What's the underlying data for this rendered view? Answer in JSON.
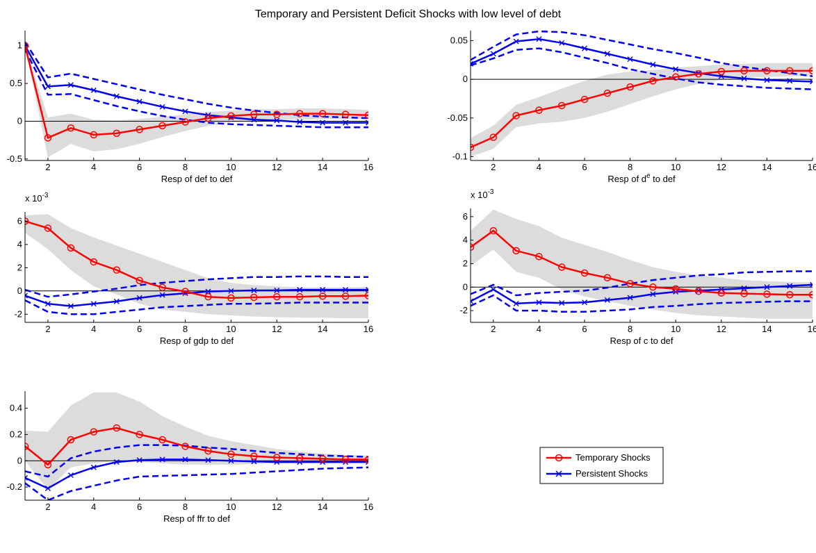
{
  "figure_title": "Temporary and Persistent Deficit Shocks with low level of debt",
  "colors": {
    "temporary": "#ff0000",
    "persistent": "#0000ee",
    "band": "#dcdcdc",
    "zero_line": "#000000"
  },
  "legend": {
    "items": [
      "Temporary Shocks",
      "Persistent Shocks"
    ]
  },
  "chart_data": [
    {
      "type": "line",
      "xlabel": "Resp of def to def",
      "xlabel_sup": "",
      "xlabel_after": "",
      "exponent_label": "",
      "x": [
        1,
        2,
        3,
        4,
        5,
        6,
        7,
        8,
        9,
        10,
        11,
        12,
        13,
        14,
        15,
        16
      ],
      "xlim": [
        1,
        16
      ],
      "ylim": [
        -0.52,
        1.2
      ],
      "xticks": [
        "2",
        "4",
        "6",
        "8",
        "10",
        "12",
        "14",
        "16"
      ],
      "yticks": [
        {
          "value": -0.5,
          "label": "-0.5"
        },
        {
          "value": 0,
          "label": "0"
        },
        {
          "value": 0.5,
          "label": "0.5"
        },
        {
          "value": 1,
          "label": "1"
        }
      ],
      "series": [
        {
          "name": "Temporary Shocks",
          "values": [
            1.0,
            -0.22,
            -0.09,
            -0.18,
            -0.16,
            -0.11,
            -0.06,
            -0.01,
            0.04,
            0.07,
            0.09,
            0.09,
            0.1,
            0.1,
            0.09,
            0.08
          ]
        },
        {
          "name": "Persistent Shocks",
          "values": [
            1.0,
            0.46,
            0.48,
            0.41,
            0.33,
            0.26,
            0.19,
            0.13,
            0.08,
            0.05,
            0.02,
            0.01,
            -0.01,
            -0.02,
            -0.02,
            -0.02
          ]
        }
      ],
      "persistent_band": {
        "upper": [
          1.05,
          0.58,
          0.63,
          0.56,
          0.49,
          0.42,
          0.35,
          0.29,
          0.23,
          0.18,
          0.14,
          0.11,
          0.08,
          0.06,
          0.05,
          0.04
        ],
        "lower": [
          0.95,
          0.35,
          0.36,
          0.28,
          0.2,
          0.13,
          0.07,
          0.02,
          -0.02,
          -0.04,
          -0.05,
          -0.06,
          -0.07,
          -0.08,
          -0.08,
          -0.08
        ]
      },
      "temporary_band": {
        "upper": [
          1.0,
          0.05,
          0.1,
          0.02,
          0.01,
          0.03,
          0.06,
          0.09,
          0.12,
          0.14,
          0.16,
          0.16,
          0.17,
          0.17,
          0.16,
          0.15
        ],
        "lower": [
          1.0,
          -0.48,
          -0.3,
          -0.4,
          -0.37,
          -0.3,
          -0.21,
          -0.13,
          -0.06,
          -0.02,
          0.01,
          0.02,
          0.02,
          0.03,
          0.03,
          0.03
        ]
      }
    },
    {
      "type": "line",
      "xlabel": "Resp of d",
      "xlabel_sup": "e",
      "xlabel_after": " to def",
      "exponent_label": "",
      "x": [
        1,
        2,
        3,
        4,
        5,
        6,
        7,
        8,
        9,
        10,
        11,
        12,
        13,
        14,
        15,
        16
      ],
      "xlim": [
        1,
        16
      ],
      "ylim": [
        -0.105,
        0.063
      ],
      "xticks": [
        "2",
        "4",
        "6",
        "8",
        "10",
        "12",
        "14",
        "16"
      ],
      "yticks": [
        {
          "value": -0.1,
          "label": "-0.1"
        },
        {
          "value": -0.05,
          "label": "-0.05"
        },
        {
          "value": 0,
          "label": "0"
        },
        {
          "value": 0.05,
          "label": "0.05"
        }
      ],
      "series": [
        {
          "name": "Temporary Shocks",
          "values": [
            -0.088,
            -0.075,
            -0.047,
            -0.04,
            -0.034,
            -0.026,
            -0.018,
            -0.01,
            -0.002,
            0.003,
            0.007,
            0.01,
            0.011,
            0.011,
            0.011,
            0.011
          ]
        },
        {
          "name": "Persistent Shocks",
          "values": [
            0.02,
            0.033,
            0.049,
            0.052,
            0.047,
            0.04,
            0.033,
            0.026,
            0.019,
            0.013,
            0.008,
            0.004,
            0.001,
            -0.001,
            -0.002,
            -0.003
          ]
        }
      ],
      "persistent_band": {
        "upper": [
          0.025,
          0.042,
          0.058,
          0.062,
          0.061,
          0.057,
          0.051,
          0.045,
          0.039,
          0.034,
          0.028,
          0.021,
          0.016,
          0.012,
          0.008,
          0.004
        ],
        "lower": [
          0.018,
          0.027,
          0.038,
          0.04,
          0.035,
          0.028,
          0.021,
          0.013,
          0.007,
          0.001,
          -0.004,
          -0.007,
          -0.009,
          -0.011,
          -0.012,
          -0.013
        ]
      },
      "temporary_band": {
        "upper": [
          -0.076,
          -0.06,
          -0.033,
          -0.023,
          -0.012,
          -0.002,
          0.006,
          0.01,
          0.012,
          0.015,
          0.017,
          0.019,
          0.02,
          0.021,
          0.021,
          0.021
        ],
        "lower": [
          -0.1,
          -0.09,
          -0.062,
          -0.057,
          -0.055,
          -0.05,
          -0.042,
          -0.032,
          -0.022,
          -0.013,
          -0.006,
          -0.001,
          0.002,
          0.003,
          0.004,
          0.004
        ]
      }
    },
    {
      "type": "line",
      "xlabel": "Resp of gdp to def",
      "xlabel_sup": "",
      "xlabel_after": "",
      "exponent_label": "x 10",
      "exponent_power": "-3",
      "x": [
        1,
        2,
        3,
        4,
        5,
        6,
        7,
        8,
        9,
        10,
        11,
        12,
        13,
        14,
        15,
        16
      ],
      "xlim": [
        1,
        16
      ],
      "ylim": [
        -2.7,
        6.8
      ],
      "xticks": [
        "2",
        "4",
        "6",
        "8",
        "10",
        "12",
        "14",
        "16"
      ],
      "yticks": [
        {
          "value": -2,
          "label": "-2"
        },
        {
          "value": 0,
          "label": "0"
        },
        {
          "value": 2,
          "label": "2"
        },
        {
          "value": 4,
          "label": "4"
        },
        {
          "value": 6,
          "label": "6"
        }
      ],
      "series": [
        {
          "name": "Temporary Shocks",
          "values": [
            6.0,
            5.4,
            3.7,
            2.5,
            1.8,
            0.9,
            0.3,
            -0.05,
            -0.5,
            -0.6,
            -0.55,
            -0.5,
            -0.5,
            -0.45,
            -0.45,
            -0.4
          ]
        },
        {
          "name": "Persistent Shocks",
          "values": [
            -0.4,
            -1.1,
            -1.3,
            -1.1,
            -0.9,
            -0.6,
            -0.35,
            -0.2,
            -0.05,
            0.0,
            0.05,
            0.05,
            0.1,
            0.1,
            0.1,
            0.1
          ]
        }
      ],
      "persistent_band": {
        "upper": [
          0.1,
          -0.5,
          -0.3,
          -0.05,
          0.2,
          0.5,
          0.7,
          0.85,
          1.0,
          1.1,
          1.2,
          1.2,
          1.25,
          1.25,
          1.2,
          1.2
        ],
        "lower": [
          -0.8,
          -1.8,
          -2.0,
          -2.0,
          -1.8,
          -1.6,
          -1.4,
          -1.3,
          -1.2,
          -1.1,
          -1.1,
          -1.05,
          -1.0,
          -1.0,
          -1.0,
          -1.0
        ]
      },
      "temporary_band": {
        "upper": [
          6.5,
          6.6,
          5.4,
          4.6,
          3.9,
          3.2,
          2.5,
          1.8,
          1.1,
          0.7,
          0.5,
          0.4,
          0.3,
          0.3,
          0.3,
          0.35
        ],
        "lower": [
          5.0,
          3.6,
          1.8,
          0.4,
          -0.3,
          -1.1,
          -1.6,
          -1.8,
          -2.0,
          -2.1,
          -2.2,
          -2.25,
          -2.3,
          -2.3,
          -2.35,
          -2.35
        ]
      }
    },
    {
      "type": "line",
      "xlabel": "Resp of c to def",
      "xlabel_sup": "",
      "xlabel_after": "",
      "exponent_label": "x 10",
      "exponent_power": "-3",
      "x": [
        1,
        2,
        3,
        4,
        5,
        6,
        7,
        8,
        9,
        10,
        11,
        12,
        13,
        14,
        15,
        16
      ],
      "xlim": [
        1,
        16
      ],
      "ylim": [
        -3.0,
        6.7
      ],
      "xticks": [
        "2",
        "4",
        "6",
        "8",
        "10",
        "12",
        "14",
        "16"
      ],
      "yticks": [
        {
          "value": -2,
          "label": "-2"
        },
        {
          "value": 0,
          "label": "0"
        },
        {
          "value": 2,
          "label": "2"
        },
        {
          "value": 4,
          "label": "4"
        },
        {
          "value": 6,
          "label": "6"
        }
      ],
      "series": [
        {
          "name": "Temporary Shocks",
          "values": [
            3.4,
            4.8,
            3.1,
            2.6,
            1.7,
            1.2,
            0.8,
            0.3,
            0.0,
            -0.15,
            -0.35,
            -0.5,
            -0.55,
            -0.6,
            -0.65,
            -0.65
          ]
        },
        {
          "name": "Persistent Shocks",
          "values": [
            -1.2,
            -0.2,
            -1.4,
            -1.3,
            -1.35,
            -1.3,
            -1.1,
            -0.9,
            -0.6,
            -0.4,
            -0.3,
            -0.2,
            -0.1,
            0.0,
            0.1,
            0.2
          ]
        }
      ],
      "persistent_band": {
        "upper": [
          -0.6,
          0.2,
          -0.7,
          -0.5,
          -0.4,
          -0.3,
          -0.05,
          0.3,
          0.6,
          0.8,
          1.0,
          1.1,
          1.25,
          1.3,
          1.35,
          1.35
        ],
        "lower": [
          -1.6,
          -0.7,
          -2.0,
          -2.0,
          -2.1,
          -2.1,
          -2.0,
          -1.9,
          -1.7,
          -1.6,
          -1.45,
          -1.35,
          -1.3,
          -1.25,
          -1.2,
          -1.2
        ]
      },
      "temporary_band": {
        "upper": [
          4.8,
          6.6,
          5.8,
          5.2,
          4.2,
          3.6,
          3.0,
          2.3,
          1.7,
          1.3,
          1.0,
          0.8,
          0.6,
          0.5,
          0.45,
          0.4
        ],
        "lower": [
          1.8,
          3.2,
          1.3,
          0.8,
          -0.2,
          -0.8,
          -1.2,
          -1.6,
          -1.9,
          -2.2,
          -2.4,
          -2.5,
          -2.6,
          -2.7,
          -2.7,
          -2.7
        ]
      }
    },
    {
      "type": "line",
      "xlabel": "Resp of ffr to def",
      "xlabel_sup": "",
      "xlabel_after": "",
      "exponent_label": "",
      "x": [
        1,
        2,
        3,
        4,
        5,
        6,
        7,
        8,
        9,
        10,
        11,
        12,
        13,
        14,
        15,
        16
      ],
      "xlim": [
        1,
        16
      ],
      "ylim": [
        -0.3,
        0.53
      ],
      "xticks": [
        "2",
        "4",
        "6",
        "8",
        "10",
        "12",
        "14",
        "16"
      ],
      "yticks": [
        {
          "value": -0.2,
          "label": "-0.2"
        },
        {
          "value": 0,
          "label": "0"
        },
        {
          "value": 0.2,
          "label": "0.2"
        },
        {
          "value": 0.4,
          "label": "0.4"
        }
      ],
      "series": [
        {
          "name": "Temporary Shocks",
          "values": [
            0.11,
            -0.03,
            0.16,
            0.22,
            0.25,
            0.2,
            0.16,
            0.11,
            0.075,
            0.05,
            0.035,
            0.025,
            0.02,
            0.015,
            0.01,
            0.01
          ]
        },
        {
          "name": "Persistent Shocks",
          "values": [
            -0.13,
            -0.21,
            -0.11,
            -0.05,
            -0.01,
            0.005,
            0.01,
            0.01,
            0.005,
            0.0,
            -0.005,
            -0.01,
            -0.01,
            -0.01,
            -0.01,
            -0.01
          ]
        }
      ],
      "persistent_band": {
        "upper": [
          -0.08,
          -0.12,
          0.02,
          0.07,
          0.1,
          0.12,
          0.12,
          0.115,
          0.1,
          0.09,
          0.075,
          0.06,
          0.05,
          0.04,
          0.035,
          0.03
        ],
        "lower": [
          -0.17,
          -0.3,
          -0.23,
          -0.19,
          -0.15,
          -0.12,
          -0.115,
          -0.11,
          -0.105,
          -0.1,
          -0.09,
          -0.08,
          -0.07,
          -0.06,
          -0.055,
          -0.05
        ]
      },
      "temporary_band": {
        "upper": [
          0.23,
          0.22,
          0.42,
          0.52,
          0.52,
          0.45,
          0.34,
          0.26,
          0.19,
          0.15,
          0.12,
          0.09,
          0.07,
          0.055,
          0.045,
          0.04
        ],
        "lower": [
          0.0,
          -0.22,
          -0.05,
          -0.02,
          0.0,
          -0.01,
          -0.02,
          -0.03,
          -0.03,
          -0.03,
          -0.025,
          -0.02,
          -0.015,
          -0.01,
          -0.01,
          -0.01
        ]
      }
    }
  ]
}
